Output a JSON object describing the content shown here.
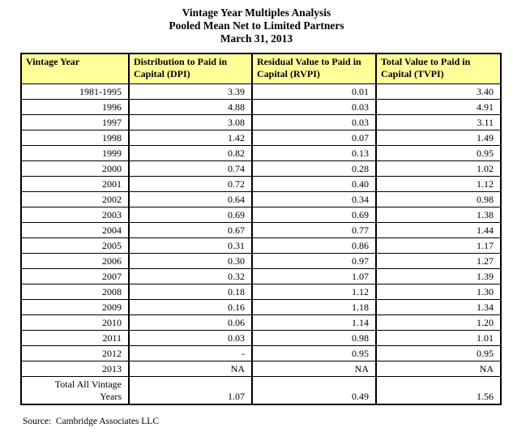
{
  "page": {
    "title_lines": [
      "Vintage Year Multiples Analysis",
      "Pooled Mean Net to Limited Partners",
      "March 31, 2013"
    ],
    "source": "Source:  Cambridge Associates LLC"
  },
  "table": {
    "header_bg": "#FFFF99",
    "border_color": "#000000",
    "columns": [
      "Vintage Year",
      "Distribution to Paid in Capital (DPI)",
      "Residual Value to Paid in Capital (RVPI)",
      "Total Value to Paid in Capital (TVPI)"
    ],
    "rows": [
      [
        "1981-1995",
        "3.39",
        "0.01",
        "3.40"
      ],
      [
        "1996",
        "4.88",
        "0.03",
        "4.91"
      ],
      [
        "1997",
        "3.08",
        "0.03",
        "3.11"
      ],
      [
        "1998",
        "1.42",
        "0.07",
        "1.49"
      ],
      [
        "1999",
        "0.82",
        "0.13",
        "0.95"
      ],
      [
        "2000",
        "0.74",
        "0.28",
        "1.02"
      ],
      [
        "2001",
        "0.72",
        "0.40",
        "1.12"
      ],
      [
        "2002",
        "0.64",
        "0.34",
        "0.98"
      ],
      [
        "2003",
        "0.69",
        "0.69",
        "1.38"
      ],
      [
        "2004",
        "0.67",
        "0.77",
        "1.44"
      ],
      [
        "2005",
        "0.31",
        "0.86",
        "1.17"
      ],
      [
        "2006",
        "0.30",
        "0.97",
        "1.27"
      ],
      [
        "2007",
        "0.32",
        "1.07",
        "1.39"
      ],
      [
        "2008",
        "0.18",
        "1.12",
        "1.30"
      ],
      [
        "2009",
        "0.16",
        "1.18",
        "1.34"
      ],
      [
        "2010",
        "0.06",
        "1.14",
        "1.20"
      ],
      [
        "2011",
        "0.03",
        "0.98",
        "1.01"
      ],
      [
        "2012",
        "-",
        "0.95",
        "0.95"
      ],
      [
        "2013",
        "NA",
        "NA",
        "NA"
      ]
    ],
    "total_row": {
      "label": "Total All Vintage\nYears",
      "values": [
        "1.07",
        "0.49",
        "1.56"
      ]
    }
  },
  "chart_data": {
    "type": "table",
    "title": "Vintage Year Multiples Analysis",
    "subtitle": "Pooled Mean Net to Limited Partners",
    "as_of_date": "March 31, 2013",
    "columns": [
      "Vintage Year",
      "Distribution to Paid in Capital (DPI)",
      "Residual Value to Paid in Capital (RVPI)",
      "Total Value to Paid in Capital (TVPI)"
    ],
    "rows": [
      {
        "vintage_year": "1981-1995",
        "dpi": 3.39,
        "rvpi": 0.01,
        "tvpi": 3.4
      },
      {
        "vintage_year": "1996",
        "dpi": 4.88,
        "rvpi": 0.03,
        "tvpi": 4.91
      },
      {
        "vintage_year": "1997",
        "dpi": 3.08,
        "rvpi": 0.03,
        "tvpi": 3.11
      },
      {
        "vintage_year": "1998",
        "dpi": 1.42,
        "rvpi": 0.07,
        "tvpi": 1.49
      },
      {
        "vintage_year": "1999",
        "dpi": 0.82,
        "rvpi": 0.13,
        "tvpi": 0.95
      },
      {
        "vintage_year": "2000",
        "dpi": 0.74,
        "rvpi": 0.28,
        "tvpi": 1.02
      },
      {
        "vintage_year": "2001",
        "dpi": 0.72,
        "rvpi": 0.4,
        "tvpi": 1.12
      },
      {
        "vintage_year": "2002",
        "dpi": 0.64,
        "rvpi": 0.34,
        "tvpi": 0.98
      },
      {
        "vintage_year": "2003",
        "dpi": 0.69,
        "rvpi": 0.69,
        "tvpi": 1.38
      },
      {
        "vintage_year": "2004",
        "dpi": 0.67,
        "rvpi": 0.77,
        "tvpi": 1.44
      },
      {
        "vintage_year": "2005",
        "dpi": 0.31,
        "rvpi": 0.86,
        "tvpi": 1.17
      },
      {
        "vintage_year": "2006",
        "dpi": 0.3,
        "rvpi": 0.97,
        "tvpi": 1.27
      },
      {
        "vintage_year": "2007",
        "dpi": 0.32,
        "rvpi": 1.07,
        "tvpi": 1.39
      },
      {
        "vintage_year": "2008",
        "dpi": 0.18,
        "rvpi": 1.12,
        "tvpi": 1.3
      },
      {
        "vintage_year": "2009",
        "dpi": 0.16,
        "rvpi": 1.18,
        "tvpi": 1.34
      },
      {
        "vintage_year": "2010",
        "dpi": 0.06,
        "rvpi": 1.14,
        "tvpi": 1.2
      },
      {
        "vintage_year": "2011",
        "dpi": 0.03,
        "rvpi": 0.98,
        "tvpi": 1.01
      },
      {
        "vintage_year": "2012",
        "dpi": null,
        "rvpi": 0.95,
        "tvpi": 0.95
      },
      {
        "vintage_year": "2013",
        "dpi": "NA",
        "rvpi": "NA",
        "tvpi": "NA"
      },
      {
        "vintage_year": "Total All Vintage Years",
        "dpi": 1.07,
        "rvpi": 0.49,
        "tvpi": 1.56
      }
    ]
  }
}
